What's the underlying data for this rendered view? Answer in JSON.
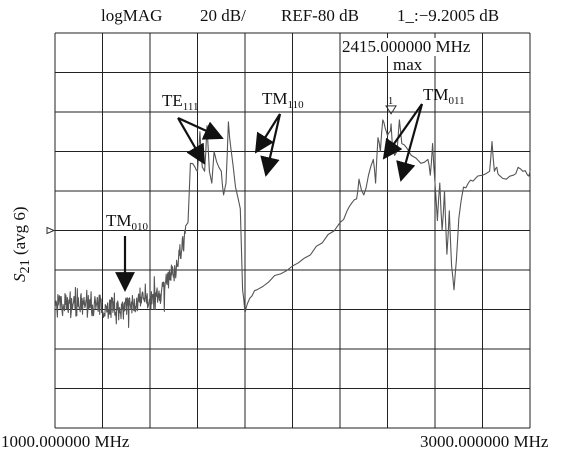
{
  "header": {
    "format": "logMAG",
    "scale": "20 dB/",
    "reference": "REF-80 dB",
    "marker_readout": "1_:−9.2005 dB"
  },
  "marker": {
    "frequency": "2415.000000 MHz",
    "label": "max",
    "number": "1"
  },
  "chart_data": {
    "type": "line",
    "title": "",
    "xlabel": "",
    "ylabel": "S21 (avg 6)",
    "ylabel_main": "S",
    "ylabel_sub": "21",
    "ylabel_suffix": " (avg 6)",
    "x_start_label": "1000.000000 MHz",
    "x_stop_label": "3000.000000 MHz",
    "xlim": [
      1000,
      3000
    ],
    "ylim": [
      -180,
      20
    ],
    "y_ref_dB": -80,
    "grid": true,
    "legend": "none",
    "series": [
      {
        "x": [
          1000,
          1100,
          1200,
          1300,
          1400,
          1450,
          1500,
          1540,
          1560,
          1570,
          1590,
          1600,
          1610,
          1620,
          1630,
          1640,
          1650,
          1660,
          1670,
          1690,
          1700,
          1710,
          1720,
          1730,
          1740,
          1760,
          1780,
          1790,
          1800,
          1810,
          1830,
          1850,
          1900,
          1950,
          2000,
          2050,
          2100,
          2150,
          2200,
          2230,
          2250,
          2270,
          2280,
          2300,
          2320,
          2340,
          2350,
          2360,
          2370,
          2380,
          2390,
          2400,
          2410,
          2415,
          2420,
          2430,
          2440,
          2450,
          2460,
          2480,
          2500,
          2540,
          2570,
          2580,
          2590,
          2600,
          2610,
          2620,
          2630,
          2640,
          2650,
          2660,
          2670,
          2680,
          2690,
          2700,
          2720,
          2740,
          2760,
          2800,
          2830,
          2840,
          2850,
          2860,
          2870,
          2900,
          2930,
          2950,
          2970,
          2990,
          3000
        ],
        "y": [
          -118,
          -117,
          -119,
          -119,
          -116,
          -110,
          -102,
          -88,
          -76,
          -46,
          -48,
          -50,
          -30,
          -48,
          -50,
          -27,
          -50,
          -56,
          -40,
          -48,
          -50,
          -62,
          -56,
          -25,
          -38,
          -58,
          -69,
          -110,
          -122,
          -117,
          -113,
          -110,
          -106,
          -102,
          -98,
          -94,
          -88,
          -82,
          -76,
          -70,
          -66,
          -64,
          -54,
          -62,
          -52,
          -44,
          -56,
          -33,
          -40,
          -24,
          -28,
          -32,
          -30,
          -26,
          -36,
          -42,
          -40,
          -24,
          -36,
          -38,
          -42,
          -46,
          -44,
          -52,
          -36,
          -56,
          -75,
          -56,
          -80,
          -60,
          -92,
          -70,
          -98,
          -110,
          -95,
          -74,
          -58,
          -56,
          -55,
          -52,
          -50,
          -35,
          -50,
          -48,
          -52,
          -54,
          -52,
          -48,
          -50,
          -52,
          -50
        ],
        "noise_region_x": [
          1000,
          1550
        ],
        "noise_amplitude_dB": 6
      }
    ],
    "annotations": [
      {
        "name": "TM",
        "sub": "010"
      },
      {
        "name": "TE",
        "sub": "111"
      },
      {
        "name": "TM",
        "sub": "110"
      },
      {
        "name": "TM",
        "sub": "011"
      }
    ]
  }
}
